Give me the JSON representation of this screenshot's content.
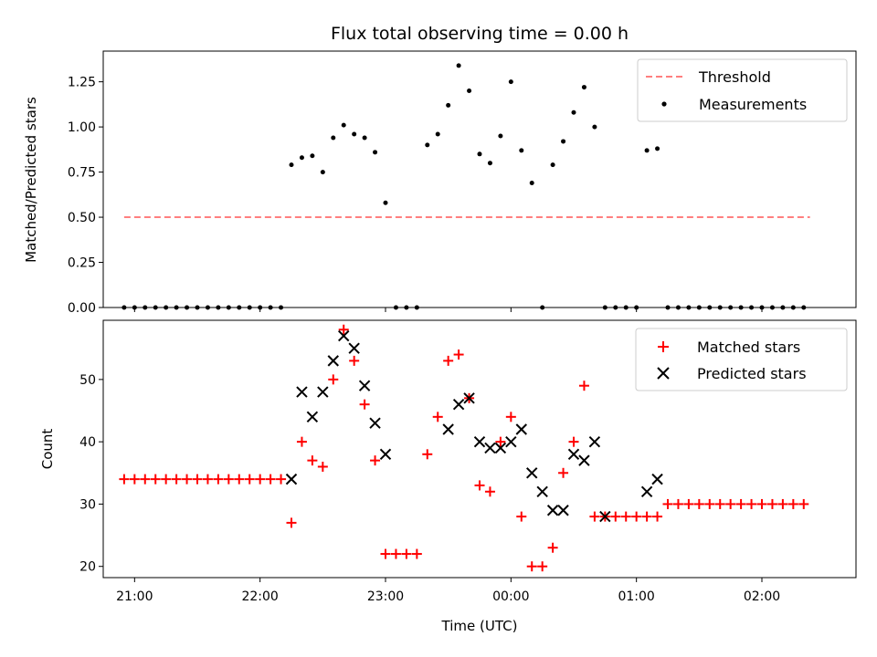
{
  "chart_data": [
    {
      "type": "scatter",
      "title": "Flux total observing time = 0.00 h",
      "xlabel": "",
      "ylabel": "Matched/Predicted stars",
      "ylim": [
        0,
        1.42
      ],
      "yticks": [
        "0.00",
        "0.25",
        "0.50",
        "0.75",
        "1.00",
        "1.25"
      ],
      "ytick_values": [
        0,
        0.25,
        0.5,
        0.75,
        1.0,
        1.25
      ],
      "xticks_shown": false,
      "grid": false,
      "legend_position": "top-right",
      "threshold": {
        "name": "Threshold",
        "value": 0.5,
        "x_start": "20:55",
        "x_end": "02:23",
        "color": "#ff7f7f"
      },
      "series": [
        {
          "name": "Measurements",
          "color": "#000000",
          "x": [
            "20:55",
            "21:00",
            "21:05",
            "21:10",
            "21:15",
            "21:20",
            "21:25",
            "21:30",
            "21:35",
            "21:40",
            "21:45",
            "21:50",
            "21:55",
            "22:00",
            "22:05",
            "22:10",
            "22:15",
            "22:20",
            "22:25",
            "22:30",
            "22:35",
            "22:40",
            "22:45",
            "22:50",
            "22:55",
            "23:00",
            "23:05",
            "23:10",
            "23:15",
            "23:20",
            "23:25",
            "23:30",
            "23:35",
            "23:40",
            "23:45",
            "23:50",
            "23:55",
            "00:00",
            "00:05",
            "00:10",
            "00:15",
            "00:20",
            "00:25",
            "00:30",
            "00:35",
            "00:40",
            "00:45",
            "00:50",
            "00:55",
            "01:00",
            "01:05",
            "01:10",
            "01:15",
            "01:20",
            "01:25",
            "01:30",
            "01:35",
            "01:40",
            "01:45",
            "01:50",
            "01:55",
            "02:00",
            "02:05",
            "02:10",
            "02:15",
            "02:20"
          ],
          "y": [
            0,
            0,
            0,
            0,
            0,
            0,
            0,
            0,
            0,
            0,
            0,
            0,
            0,
            0,
            0,
            0,
            0.79,
            0.83,
            0.84,
            0.75,
            0.94,
            1.01,
            0.96,
            0.94,
            0.86,
            0.58,
            0,
            0,
            0,
            0.9,
            0.96,
            1.12,
            1.34,
            1.2,
            0.85,
            0.8,
            0.95,
            1.25,
            0.87,
            0.69,
            0,
            0.79,
            0.92,
            1.08,
            1.22,
            1.0,
            0,
            0,
            0,
            0,
            0.87,
            0.88,
            0,
            0,
            0,
            0,
            0,
            0,
            0,
            0,
            0,
            0,
            0,
            0,
            0,
            0
          ]
        }
      ]
    },
    {
      "type": "scatter",
      "title": "",
      "xlabel": "Time (UTC)",
      "ylabel": "Count",
      "ylim": [
        18.2,
        59.5
      ],
      "yticks": [
        "20",
        "30",
        "40",
        "50"
      ],
      "ytick_values": [
        20,
        30,
        40,
        50
      ],
      "x_range": [
        "20:45",
        "02:45"
      ],
      "xticks": [
        "21:00",
        "22:00",
        "23:00",
        "00:00",
        "01:00",
        "02:00"
      ],
      "grid": false,
      "legend_position": "top-right",
      "series": [
        {
          "name": "Matched stars",
          "color": "#ff0000",
          "marker": "+",
          "x": [
            "20:55",
            "21:00",
            "21:05",
            "21:10",
            "21:15",
            "21:20",
            "21:25",
            "21:30",
            "21:35",
            "21:40",
            "21:45",
            "21:50",
            "21:55",
            "22:00",
            "22:05",
            "22:10",
            "22:15",
            "22:20",
            "22:25",
            "22:30",
            "22:35",
            "22:40",
            "22:45",
            "22:50",
            "22:55",
            "23:00",
            "23:05",
            "23:10",
            "23:15",
            "23:20",
            "23:25",
            "23:30",
            "23:35",
            "23:40",
            "23:45",
            "23:50",
            "23:55",
            "00:00",
            "00:05",
            "00:10",
            "00:15",
            "00:20",
            "00:25",
            "00:30",
            "00:35",
            "00:40",
            "00:45",
            "00:50",
            "00:55",
            "01:00",
            "01:05",
            "01:10",
            "01:15",
            "01:20",
            "01:25",
            "01:30",
            "01:35",
            "01:40",
            "01:45",
            "01:50",
            "01:55",
            "02:00",
            "02:05",
            "02:10",
            "02:15",
            "02:20"
          ],
          "y": [
            34,
            34,
            34,
            34,
            34,
            34,
            34,
            34,
            34,
            34,
            34,
            34,
            34,
            34,
            34,
            34,
            27,
            40,
            37,
            36,
            50,
            58,
            53,
            46,
            37,
            22,
            22,
            22,
            22,
            38,
            44,
            53,
            54,
            47,
            33,
            32,
            40,
            44,
            28,
            20,
            20,
            23,
            35,
            40,
            49,
            28,
            28,
            28,
            28,
            28,
            28,
            28,
            30,
            30,
            30,
            30,
            30,
            30,
            30,
            30,
            30,
            30,
            30,
            30,
            30,
            30
          ]
        },
        {
          "name": "Predicted stars",
          "color": "#000000",
          "marker": "x",
          "x": [
            "22:15",
            "22:20",
            "22:25",
            "22:30",
            "22:35",
            "22:40",
            "22:45",
            "22:50",
            "22:55",
            "23:00",
            "23:30",
            "23:35",
            "23:40",
            "23:45",
            "23:50",
            "23:55",
            "00:00",
            "00:05",
            "00:10",
            "00:15",
            "00:20",
            "00:25",
            "00:30",
            "00:35",
            "00:40",
            "00:45",
            "01:05",
            "01:10"
          ],
          "y": [
            34,
            48,
            44,
            48,
            53,
            57,
            55,
            49,
            43,
            38,
            42,
            46,
            47,
            40,
            39,
            39,
            40,
            42,
            35,
            32,
            29,
            29,
            38,
            37,
            40,
            28,
            32,
            34
          ]
        }
      ]
    }
  ],
  "legends": {
    "top": {
      "threshold": "Threshold",
      "measurements": "Measurements"
    },
    "bottom": {
      "matched": "Matched stars",
      "predicted": "Predicted stars"
    }
  }
}
